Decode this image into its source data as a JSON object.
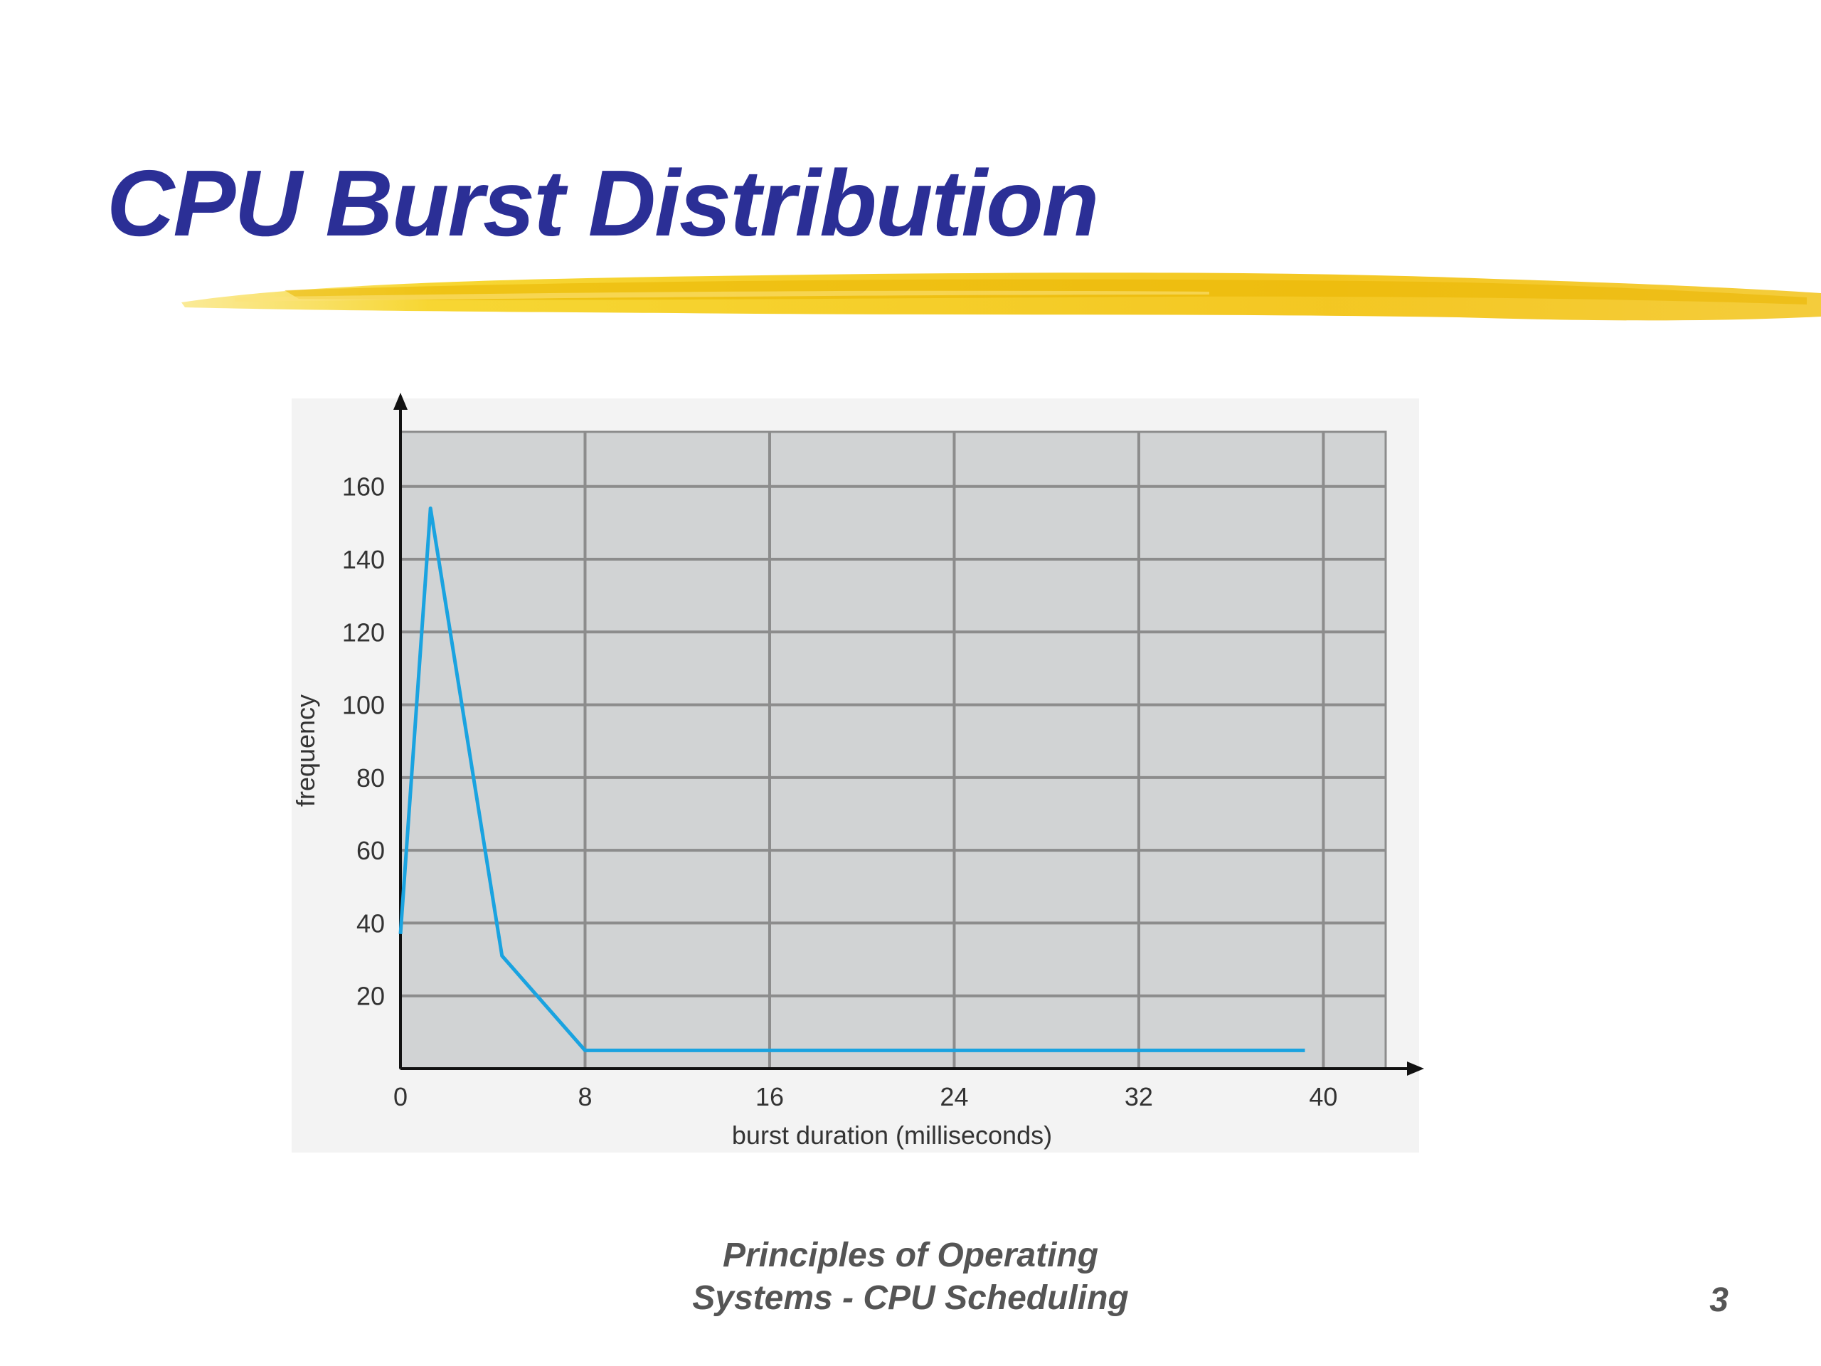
{
  "slide": {
    "title": "CPU Burst Distribution",
    "footer_line1": "Principles of Operating",
    "footer_line2": "Systems - CPU Scheduling",
    "page_number": "3"
  },
  "colors": {
    "title": "#2b2f96",
    "brush": "#f4c400",
    "plot_background": "#d1d3d4",
    "grid": "#8c8c8c",
    "line": "#1aa3e0",
    "footer": "#555555"
  },
  "chart_data": {
    "type": "line",
    "xlabel": "burst duration (milliseconds)",
    "ylabel": "frequency",
    "xlim": [
      0,
      42.7
    ],
    "ylim": [
      0,
      175
    ],
    "xticks": [
      0,
      8,
      16,
      24,
      32,
      40
    ],
    "yticks": [
      20,
      40,
      60,
      80,
      100,
      120,
      140,
      160
    ],
    "grid": true,
    "series": [
      {
        "x": [
          0,
          1.3,
          4.4,
          8,
          39.2
        ],
        "y": [
          37,
          154,
          31,
          5,
          5
        ]
      }
    ]
  }
}
